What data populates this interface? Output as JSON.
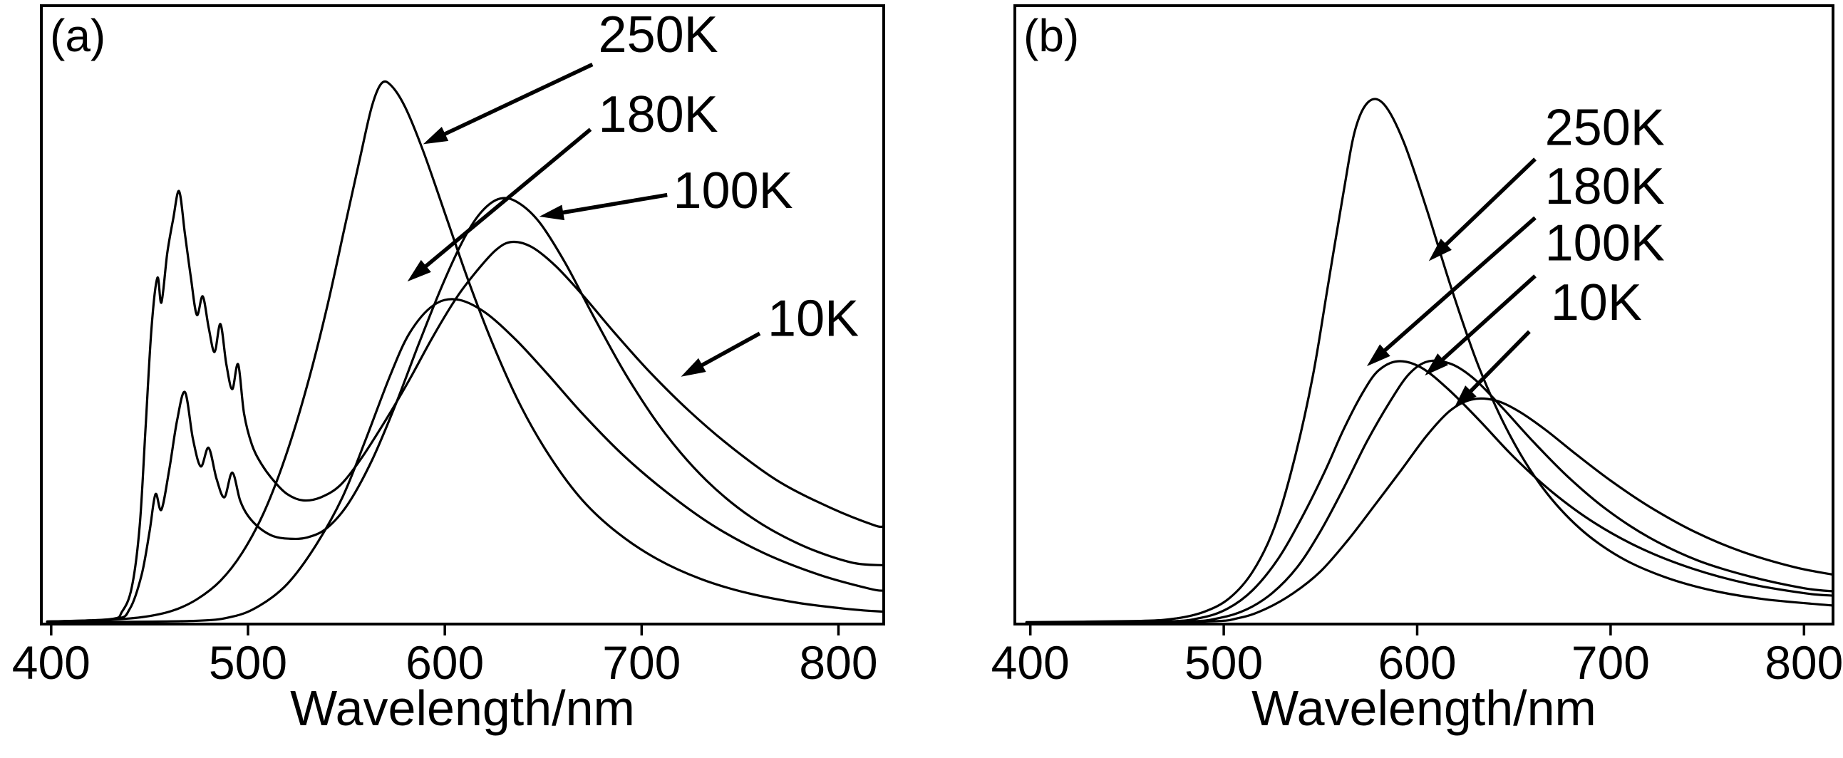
{
  "figure": {
    "background": "#ffffff",
    "curve_color": "#000000",
    "axis_color": "#000000",
    "text_color": "#000000"
  },
  "chart_data": [
    {
      "type": "line",
      "panel_label": "(a)",
      "xlabel": "Wavelength/nm",
      "ylabel": "",
      "xlim": [
        395,
        823
      ],
      "ylim": [
        0,
        1
      ],
      "xticks": [
        400,
        500,
        600,
        700,
        800
      ],
      "yticks": [],
      "grid": false,
      "legend_position": "arrow-annotations",
      "series": [
        {
          "name": "250K",
          "x": [
            398,
            430,
            448,
            462,
            474,
            486,
            497,
            508,
            519,
            530,
            540,
            549,
            557,
            563,
            568,
            573,
            580,
            589,
            600,
            612,
            625,
            639,
            654,
            670,
            688,
            708,
            730,
            754,
            780,
            806,
            823
          ],
          "y": [
            0.004,
            0.007,
            0.012,
            0.022,
            0.04,
            0.07,
            0.115,
            0.18,
            0.27,
            0.385,
            0.51,
            0.64,
            0.755,
            0.838,
            0.875,
            0.87,
            0.835,
            0.765,
            0.665,
            0.555,
            0.448,
            0.35,
            0.268,
            0.2,
            0.147,
            0.105,
            0.073,
            0.05,
            0.034,
            0.024,
            0.02
          ]
        },
        {
          "name": "180K",
          "x": [
            398,
            470,
            492,
            506,
            520,
            534,
            548,
            560,
            572,
            582,
            594,
            606,
            620,
            636,
            652,
            670,
            690,
            712,
            736,
            762,
            790,
            816,
            823
          ],
          "y": [
            0.003,
            0.005,
            0.012,
            0.03,
            0.065,
            0.125,
            0.205,
            0.3,
            0.4,
            0.47,
            0.515,
            0.525,
            0.505,
            0.46,
            0.405,
            0.34,
            0.275,
            0.215,
            0.16,
            0.115,
            0.08,
            0.057,
            0.054
          ]
        },
        {
          "name": "100K",
          "x": [
            398,
            432,
            440,
            446,
            450,
            453,
            456,
            460,
            464,
            468,
            472,
            476,
            480,
            484,
            488,
            492,
            496,
            500,
            506,
            513,
            521,
            530,
            540,
            551,
            563,
            575,
            587,
            599,
            610,
            619,
            628,
            637,
            648,
            661,
            676,
            693,
            712,
            733,
            756,
            781,
            806,
            823
          ],
          "y": [
            0.004,
            0.008,
            0.025,
            0.08,
            0.15,
            0.21,
            0.185,
            0.25,
            0.33,
            0.375,
            0.3,
            0.255,
            0.285,
            0.235,
            0.205,
            0.245,
            0.2,
            0.175,
            0.155,
            0.142,
            0.138,
            0.14,
            0.155,
            0.195,
            0.265,
            0.355,
            0.455,
            0.55,
            0.625,
            0.668,
            0.688,
            0.682,
            0.65,
            0.585,
            0.495,
            0.398,
            0.308,
            0.232,
            0.172,
            0.128,
            0.1,
            0.095
          ]
        },
        {
          "name": "10K",
          "x": [
            398,
            430,
            436,
            441,
            445,
            448,
            451,
            454,
            456,
            459,
            462,
            465,
            468,
            471,
            474,
            477,
            480,
            483,
            486,
            489,
            492,
            495,
            498,
            502,
            507,
            513,
            520,
            528,
            537,
            547,
            558,
            570,
            582,
            594,
            606,
            616,
            626,
            634,
            644,
            656,
            670,
            686,
            704,
            724,
            746,
            770,
            796,
            818,
            823
          ],
          "y": [
            0.004,
            0.008,
            0.02,
            0.06,
            0.16,
            0.32,
            0.48,
            0.56,
            0.52,
            0.6,
            0.655,
            0.7,
            0.63,
            0.56,
            0.5,
            0.53,
            0.48,
            0.44,
            0.485,
            0.42,
            0.38,
            0.42,
            0.34,
            0.29,
            0.258,
            0.232,
            0.21,
            0.2,
            0.205,
            0.225,
            0.27,
            0.33,
            0.395,
            0.465,
            0.528,
            0.57,
            0.605,
            0.618,
            0.61,
            0.58,
            0.532,
            0.472,
            0.408,
            0.345,
            0.285,
            0.23,
            0.188,
            0.16,
            0.158
          ]
        }
      ],
      "annotations": [
        {
          "label": "250K",
          "text": [
            678,
            0.925
          ],
          "from": [
            675,
            0.905
          ],
          "to": [
            589,
            0.776
          ]
        },
        {
          "label": "180K",
          "text": [
            678,
            0.796
          ],
          "from": [
            674,
            0.8
          ],
          "to": [
            581,
            0.554
          ]
        },
        {
          "label": "100K",
          "text": [
            716,
            0.673
          ],
          "from": [
            713,
            0.694
          ],
          "to": [
            648,
            0.659
          ]
        },
        {
          "label": "10K",
          "text": [
            764,
            0.466
          ],
          "from": [
            760,
            0.47
          ],
          "to": [
            720,
            0.4
          ]
        }
      ]
    },
    {
      "type": "line",
      "panel_label": "(b)",
      "xlabel": "Wavelength/nm",
      "ylabel": "",
      "xlim": [
        392,
        815
      ],
      "ylim": [
        0,
        1
      ],
      "xticks": [
        400,
        500,
        600,
        700,
        800
      ],
      "yticks": [],
      "grid": false,
      "legend_position": "arrow-annotations",
      "series": [
        {
          "name": "250K",
          "x": [
            398,
            455,
            475,
            490,
            503,
            515,
            526,
            536,
            546,
            554,
            562,
            568,
            575,
            583,
            593,
            605,
            618,
            632,
            648,
            665,
            684,
            705,
            728,
            753,
            780,
            815
          ],
          "y": [
            0.003,
            0.005,
            0.009,
            0.02,
            0.042,
            0.085,
            0.155,
            0.26,
            0.4,
            0.55,
            0.7,
            0.8,
            0.845,
            0.84,
            0.78,
            0.67,
            0.54,
            0.415,
            0.305,
            0.22,
            0.155,
            0.108,
            0.076,
            0.054,
            0.04,
            0.03
          ]
        },
        {
          "name": "180K",
          "x": [
            398,
            468,
            488,
            502,
            515,
            528,
            540,
            552,
            562,
            572,
            580,
            590,
            602,
            616,
            632,
            650,
            670,
            692,
            716,
            742,
            770,
            800,
            815
          ],
          "y": [
            0.002,
            0.004,
            0.01,
            0.025,
            0.055,
            0.105,
            0.17,
            0.245,
            0.315,
            0.375,
            0.41,
            0.425,
            0.415,
            0.38,
            0.33,
            0.27,
            0.213,
            0.163,
            0.122,
            0.09,
            0.066,
            0.05,
            0.046
          ]
        },
        {
          "name": "100K",
          "x": [
            398,
            478,
            498,
            512,
            525,
            538,
            550,
            562,
            574,
            586,
            596,
            606,
            618,
            630,
            644,
            660,
            678,
            698,
            720,
            745,
            772,
            800,
            815
          ],
          "y": [
            0.002,
            0.004,
            0.01,
            0.024,
            0.05,
            0.092,
            0.15,
            0.22,
            0.295,
            0.36,
            0.405,
            0.425,
            0.42,
            0.395,
            0.35,
            0.295,
            0.238,
            0.185,
            0.14,
            0.103,
            0.077,
            0.058,
            0.053
          ]
        },
        {
          "name": "10K",
          "x": [
            398,
            488,
            508,
            522,
            536,
            550,
            564,
            578,
            592,
            605,
            617,
            628,
            640,
            652,
            666,
            682,
            700,
            720,
            743,
            768,
            795,
            815
          ],
          "y": [
            0.002,
            0.004,
            0.01,
            0.025,
            0.05,
            0.085,
            0.135,
            0.192,
            0.25,
            0.305,
            0.345,
            0.363,
            0.362,
            0.345,
            0.315,
            0.275,
            0.232,
            0.19,
            0.15,
            0.117,
            0.092,
            0.08
          ]
        }
      ],
      "annotations": [
        {
          "label": "250K",
          "text": [
            666,
            0.775
          ],
          "from": [
            661,
            0.752
          ],
          "to": [
            606,
            0.587
          ]
        },
        {
          "label": "180K",
          "text": [
            666,
            0.68
          ],
          "from": [
            661,
            0.657
          ],
          "to": [
            574,
            0.417
          ]
        },
        {
          "label": "100K",
          "text": [
            666,
            0.588
          ],
          "from": [
            661,
            0.563
          ],
          "to": [
            604,
            0.402
          ]
        },
        {
          "label": "10K",
          "text": [
            669,
            0.492
          ],
          "from": [
            658,
            0.473
          ],
          "to": [
            619,
            0.349
          ]
        }
      ]
    }
  ]
}
